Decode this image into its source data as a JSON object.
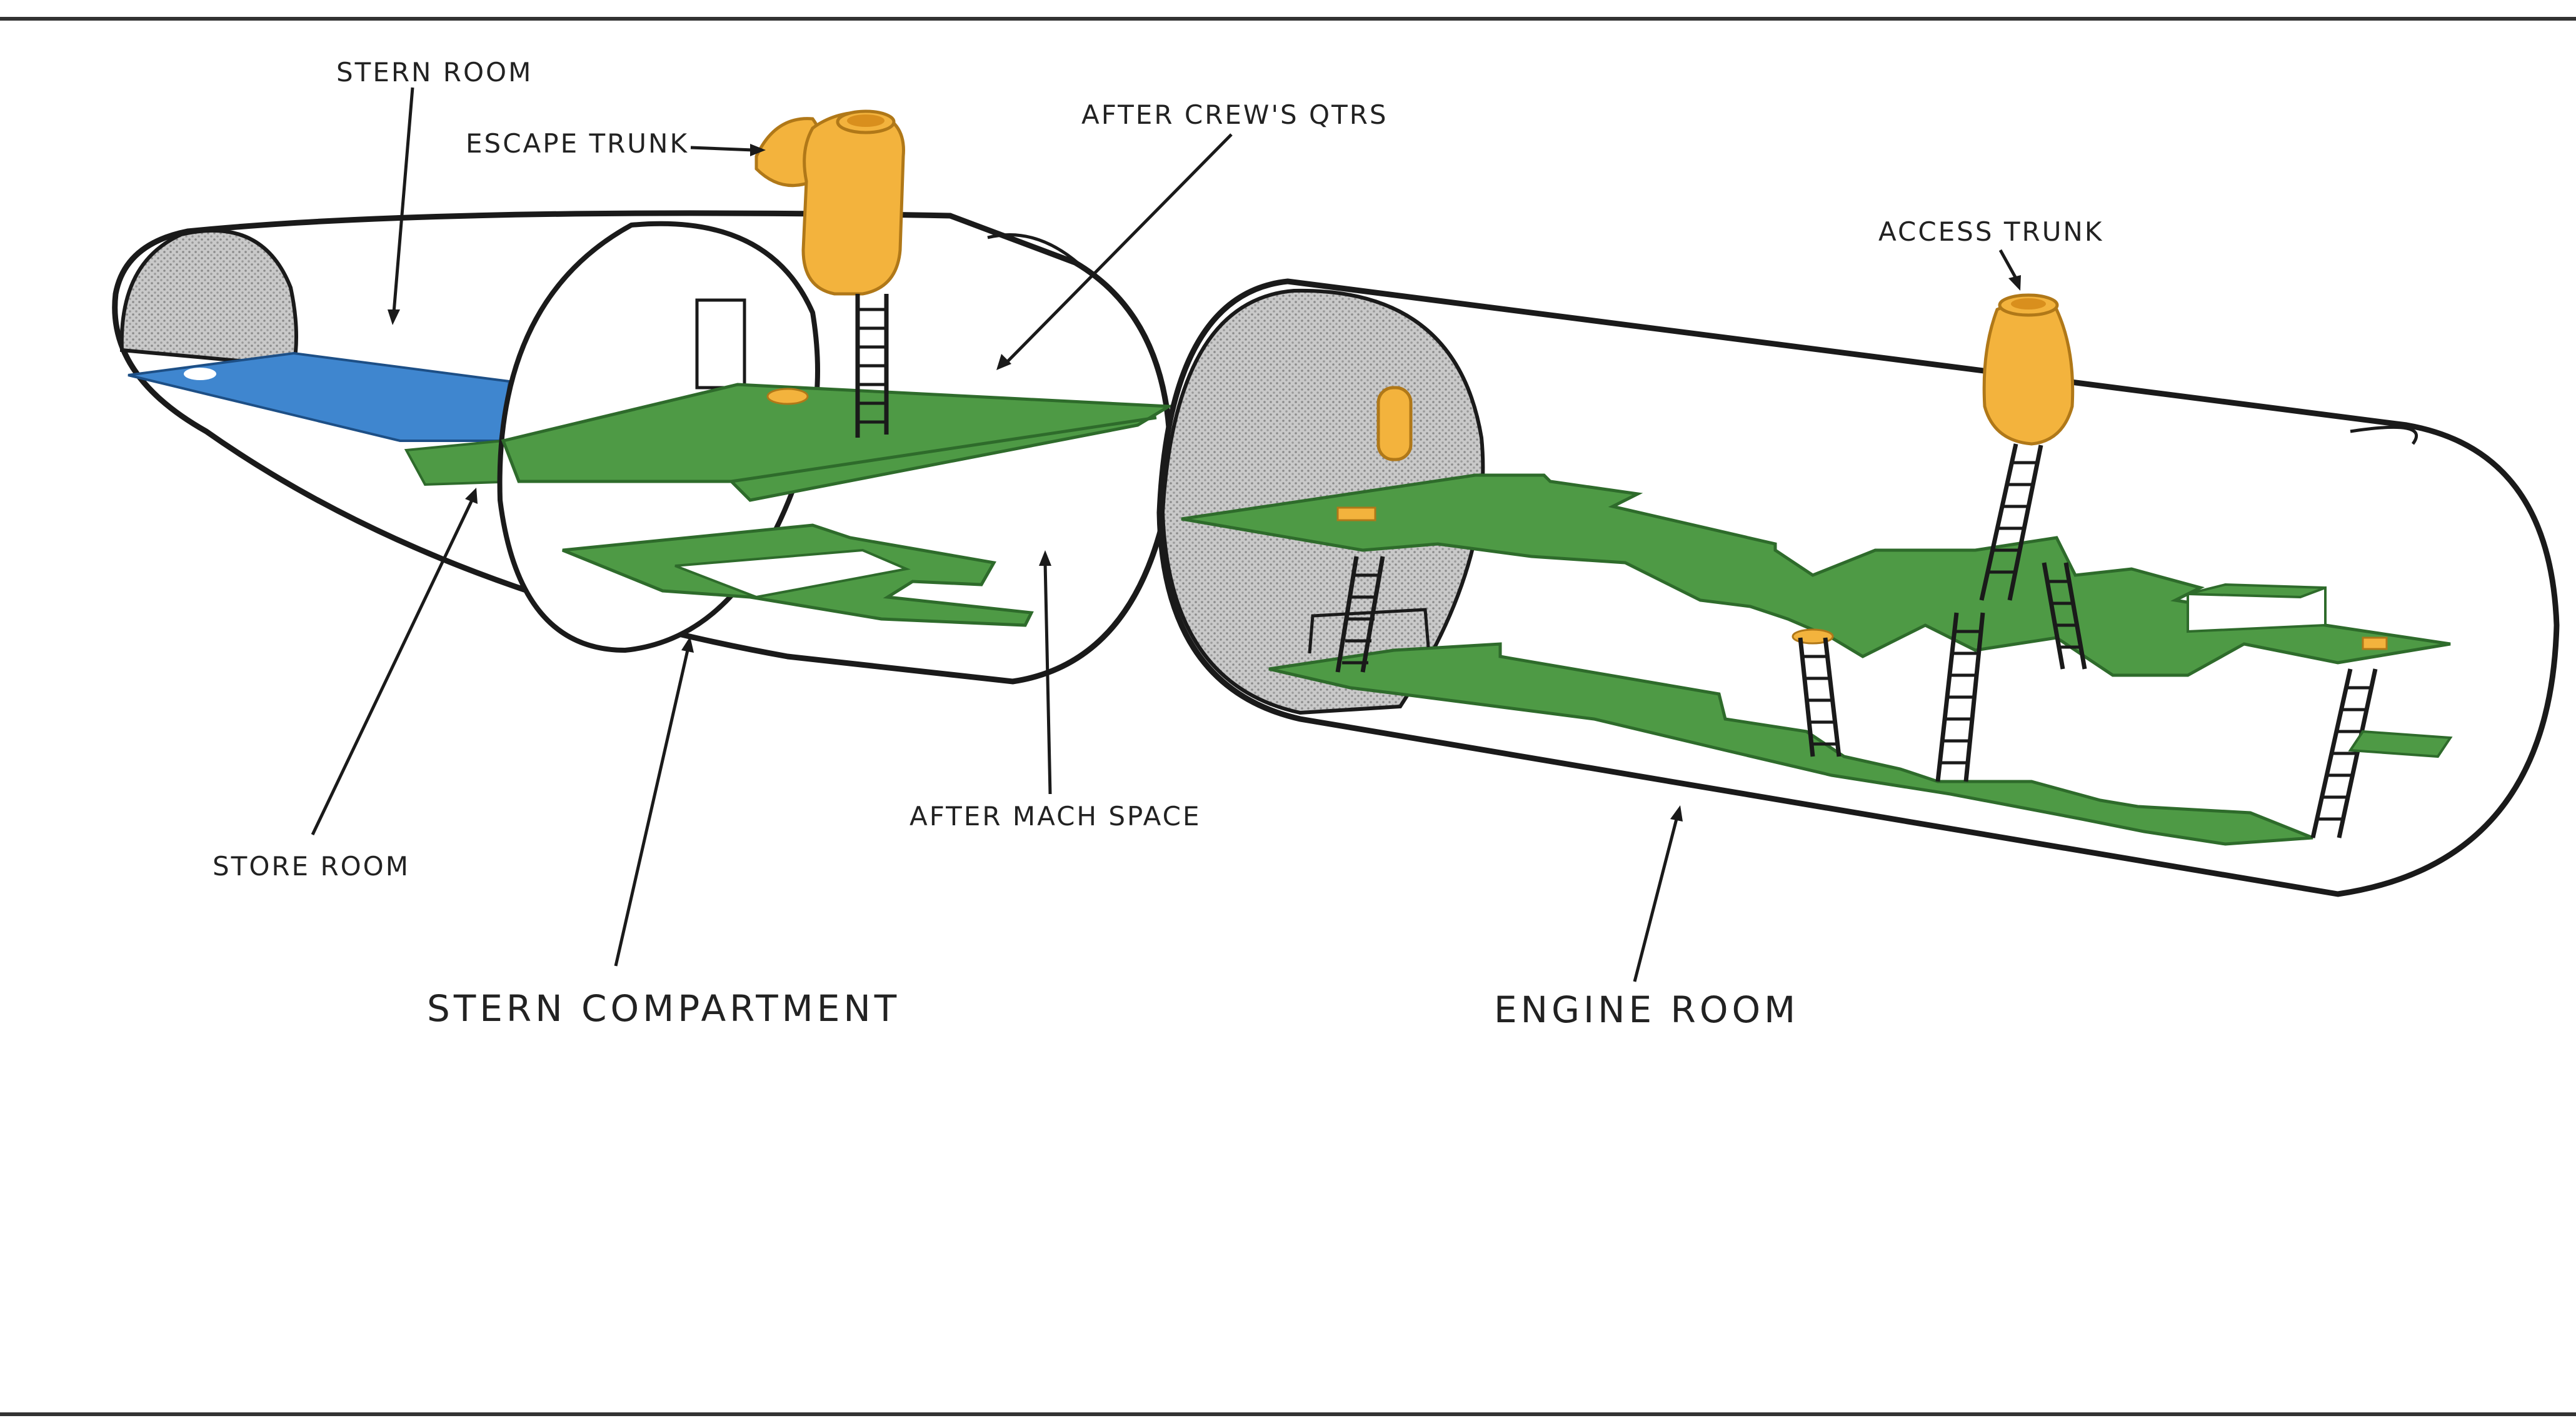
{
  "colors": {
    "deck": "#4e9a45",
    "deck_edge": "#2e6b2b",
    "tank": "#3f86cf",
    "trunk": "#f3b33d",
    "trunk_edge": "#b07818",
    "section_shade": "#bdbdbd"
  },
  "labels": {
    "stern_room": "STERN ROOM",
    "escape_trunk": "ESCAPE TRUNK",
    "after_crews_qtrs": "AFTER CREW'S QTRS",
    "access_trunk": "ACCESS TRUNK",
    "store_room": "STORE ROOM",
    "after_mach_space": "AFTER MACH SPACE",
    "stern_compartment": "STERN COMPARTMENT",
    "engine_room": "ENGINE ROOM"
  }
}
